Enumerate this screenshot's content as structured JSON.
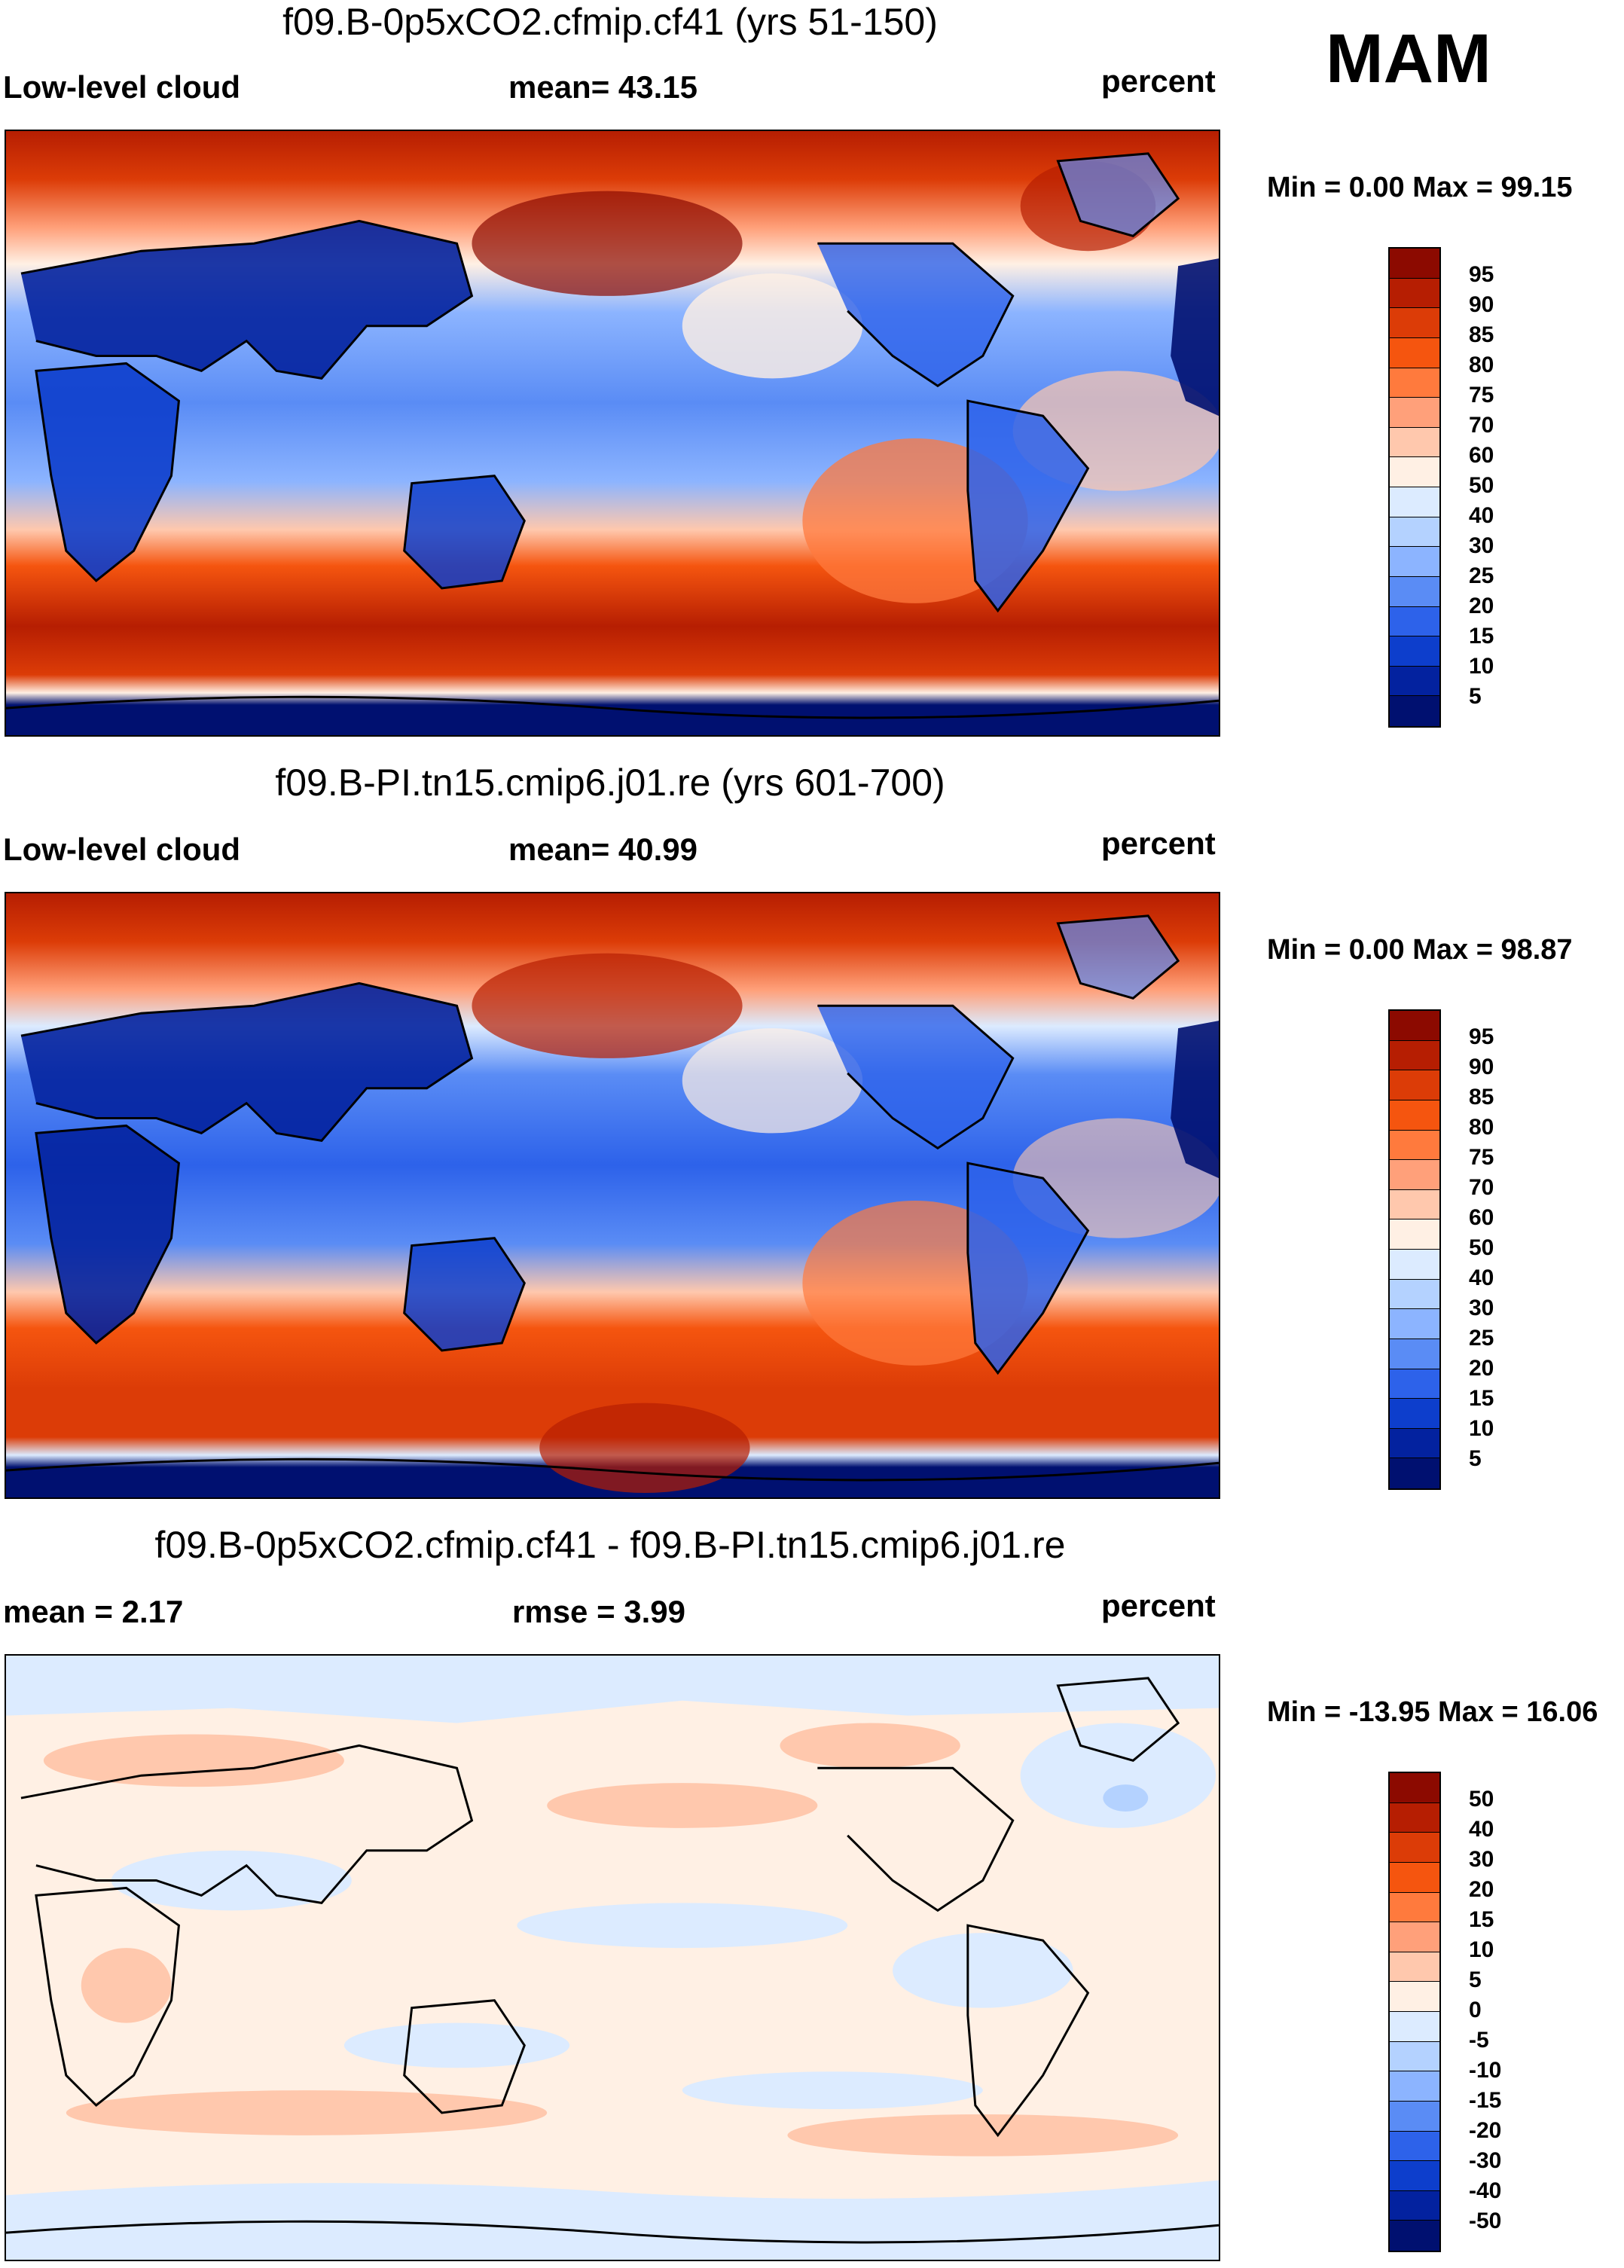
{
  "season": "MAM",
  "panels": [
    {
      "id": "p1",
      "title": "f09.B-0p5xCO2.cfmip.cf41 (yrs 51-150)",
      "left_label": "Low-level cloud",
      "mid_label": "mean=  43.15",
      "units": "percent",
      "minmax": "Min =   0.00 Max =  99.15",
      "levels": [
        "95",
        "90",
        "85",
        "80",
        "75",
        "70",
        "60",
        "50",
        "40",
        "30",
        "25",
        "20",
        "15",
        "10",
        "5"
      ],
      "colors": [
        "#8c0a00",
        "#b61e02",
        "#dc3c07",
        "#f5550f",
        "#ff7a3d",
        "#ffa07a",
        "#ffc8ad",
        "#fff0e4",
        "#dcebff",
        "#b4d2ff",
        "#8cb4ff",
        "#5a8cf5",
        "#2d62ea",
        "#0d3ecc",
        "#03229f",
        "#001070"
      ]
    },
    {
      "id": "p2",
      "title": "f09.B-PI.tn15.cmip6.j01.re (yrs 601-700)",
      "left_label": "Low-level cloud",
      "mid_label": "mean=  40.99",
      "units": "percent",
      "minmax": "Min =   0.00 Max =  98.87",
      "levels": [
        "95",
        "90",
        "85",
        "80",
        "75",
        "70",
        "60",
        "50",
        "40",
        "30",
        "25",
        "20",
        "15",
        "10",
        "5"
      ],
      "colors": [
        "#8c0a00",
        "#b61e02",
        "#dc3c07",
        "#f5550f",
        "#ff7a3d",
        "#ffa07a",
        "#ffc8ad",
        "#fff0e4",
        "#dcebff",
        "#b4d2ff",
        "#8cb4ff",
        "#5a8cf5",
        "#2d62ea",
        "#0d3ecc",
        "#03229f",
        "#001070"
      ]
    },
    {
      "id": "p3",
      "title": "f09.B-0p5xCO2.cfmip.cf41 - f09.B-PI.tn15.cmip6.j01.re",
      "left_label": "mean =   2.17",
      "mid_label": "rmse =   3.99",
      "units": "percent",
      "minmax": "Min = -13.95 Max =  16.06",
      "levels": [
        "50",
        "40",
        "30",
        "20",
        "15",
        "10",
        "5",
        "0",
        "-5",
        "-10",
        "-15",
        "-20",
        "-30",
        "-40",
        "-50"
      ],
      "colors": [
        "#8c0a00",
        "#b61e02",
        "#dc3c07",
        "#f5550f",
        "#ff7a3d",
        "#ffa07a",
        "#ffc8ad",
        "#fff0e4",
        "#dcebff",
        "#b4d2ff",
        "#8cb4ff",
        "#5a8cf5",
        "#2d62ea",
        "#0d3ecc",
        "#03229f",
        "#001070"
      ]
    }
  ]
}
